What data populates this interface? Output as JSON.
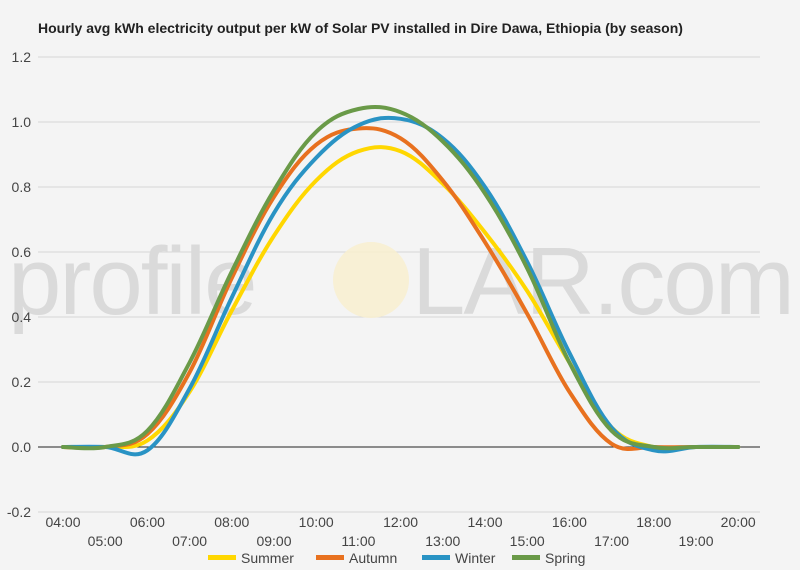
{
  "watermark": {
    "left": "profile",
    "right": "LAR.com"
  },
  "chart_data": {
    "type": "line",
    "title": "Hourly avg kWh electricity output per kW of Solar PV installed in Dire Dawa, Ethiopia (by season)",
    "xlabel": "",
    "ylabel": "",
    "ylim": [
      -0.2,
      1.2
    ],
    "yticks": [
      -0.2,
      0.0,
      0.2,
      0.4,
      0.6,
      0.8,
      1.0,
      1.2
    ],
    "ytick_labels": [
      "-0.2",
      "0.0",
      "0.2",
      "0.4",
      "0.6",
      "0.8",
      "1.0",
      "1.2"
    ],
    "x": [
      "04:00",
      "05:00",
      "06:00",
      "07:00",
      "08:00",
      "09:00",
      "10:00",
      "11:00",
      "12:00",
      "13:00",
      "14:00",
      "15:00",
      "16:00",
      "17:00",
      "18:00",
      "19:00",
      "20:00"
    ],
    "grid": true,
    "legend": "bottom",
    "series": [
      {
        "name": "Summer",
        "color": "#FFD700",
        "values": [
          0.0,
          0.0,
          0.02,
          0.17,
          0.42,
          0.65,
          0.82,
          0.91,
          0.91,
          0.81,
          0.66,
          0.48,
          0.26,
          0.06,
          0.0,
          0.0,
          0.0
        ]
      },
      {
        "name": "Autumn",
        "color": "#E8711F",
        "values": [
          0.0,
          0.0,
          0.04,
          0.23,
          0.52,
          0.77,
          0.93,
          0.98,
          0.95,
          0.82,
          0.63,
          0.41,
          0.17,
          0.01,
          0.0,
          0.0,
          0.0
        ]
      },
      {
        "name": "Winter",
        "color": "#2993C4",
        "values": [
          0.0,
          0.0,
          -0.01,
          0.18,
          0.46,
          0.72,
          0.89,
          0.99,
          1.01,
          0.95,
          0.8,
          0.57,
          0.29,
          0.06,
          -0.01,
          0.0,
          0.0
        ]
      },
      {
        "name": "Spring",
        "color": "#6A9A48",
        "values": [
          0.0,
          0.0,
          0.05,
          0.26,
          0.54,
          0.79,
          0.97,
          1.04,
          1.03,
          0.94,
          0.78,
          0.55,
          0.26,
          0.05,
          0.0,
          0.0,
          0.0
        ]
      }
    ]
  }
}
